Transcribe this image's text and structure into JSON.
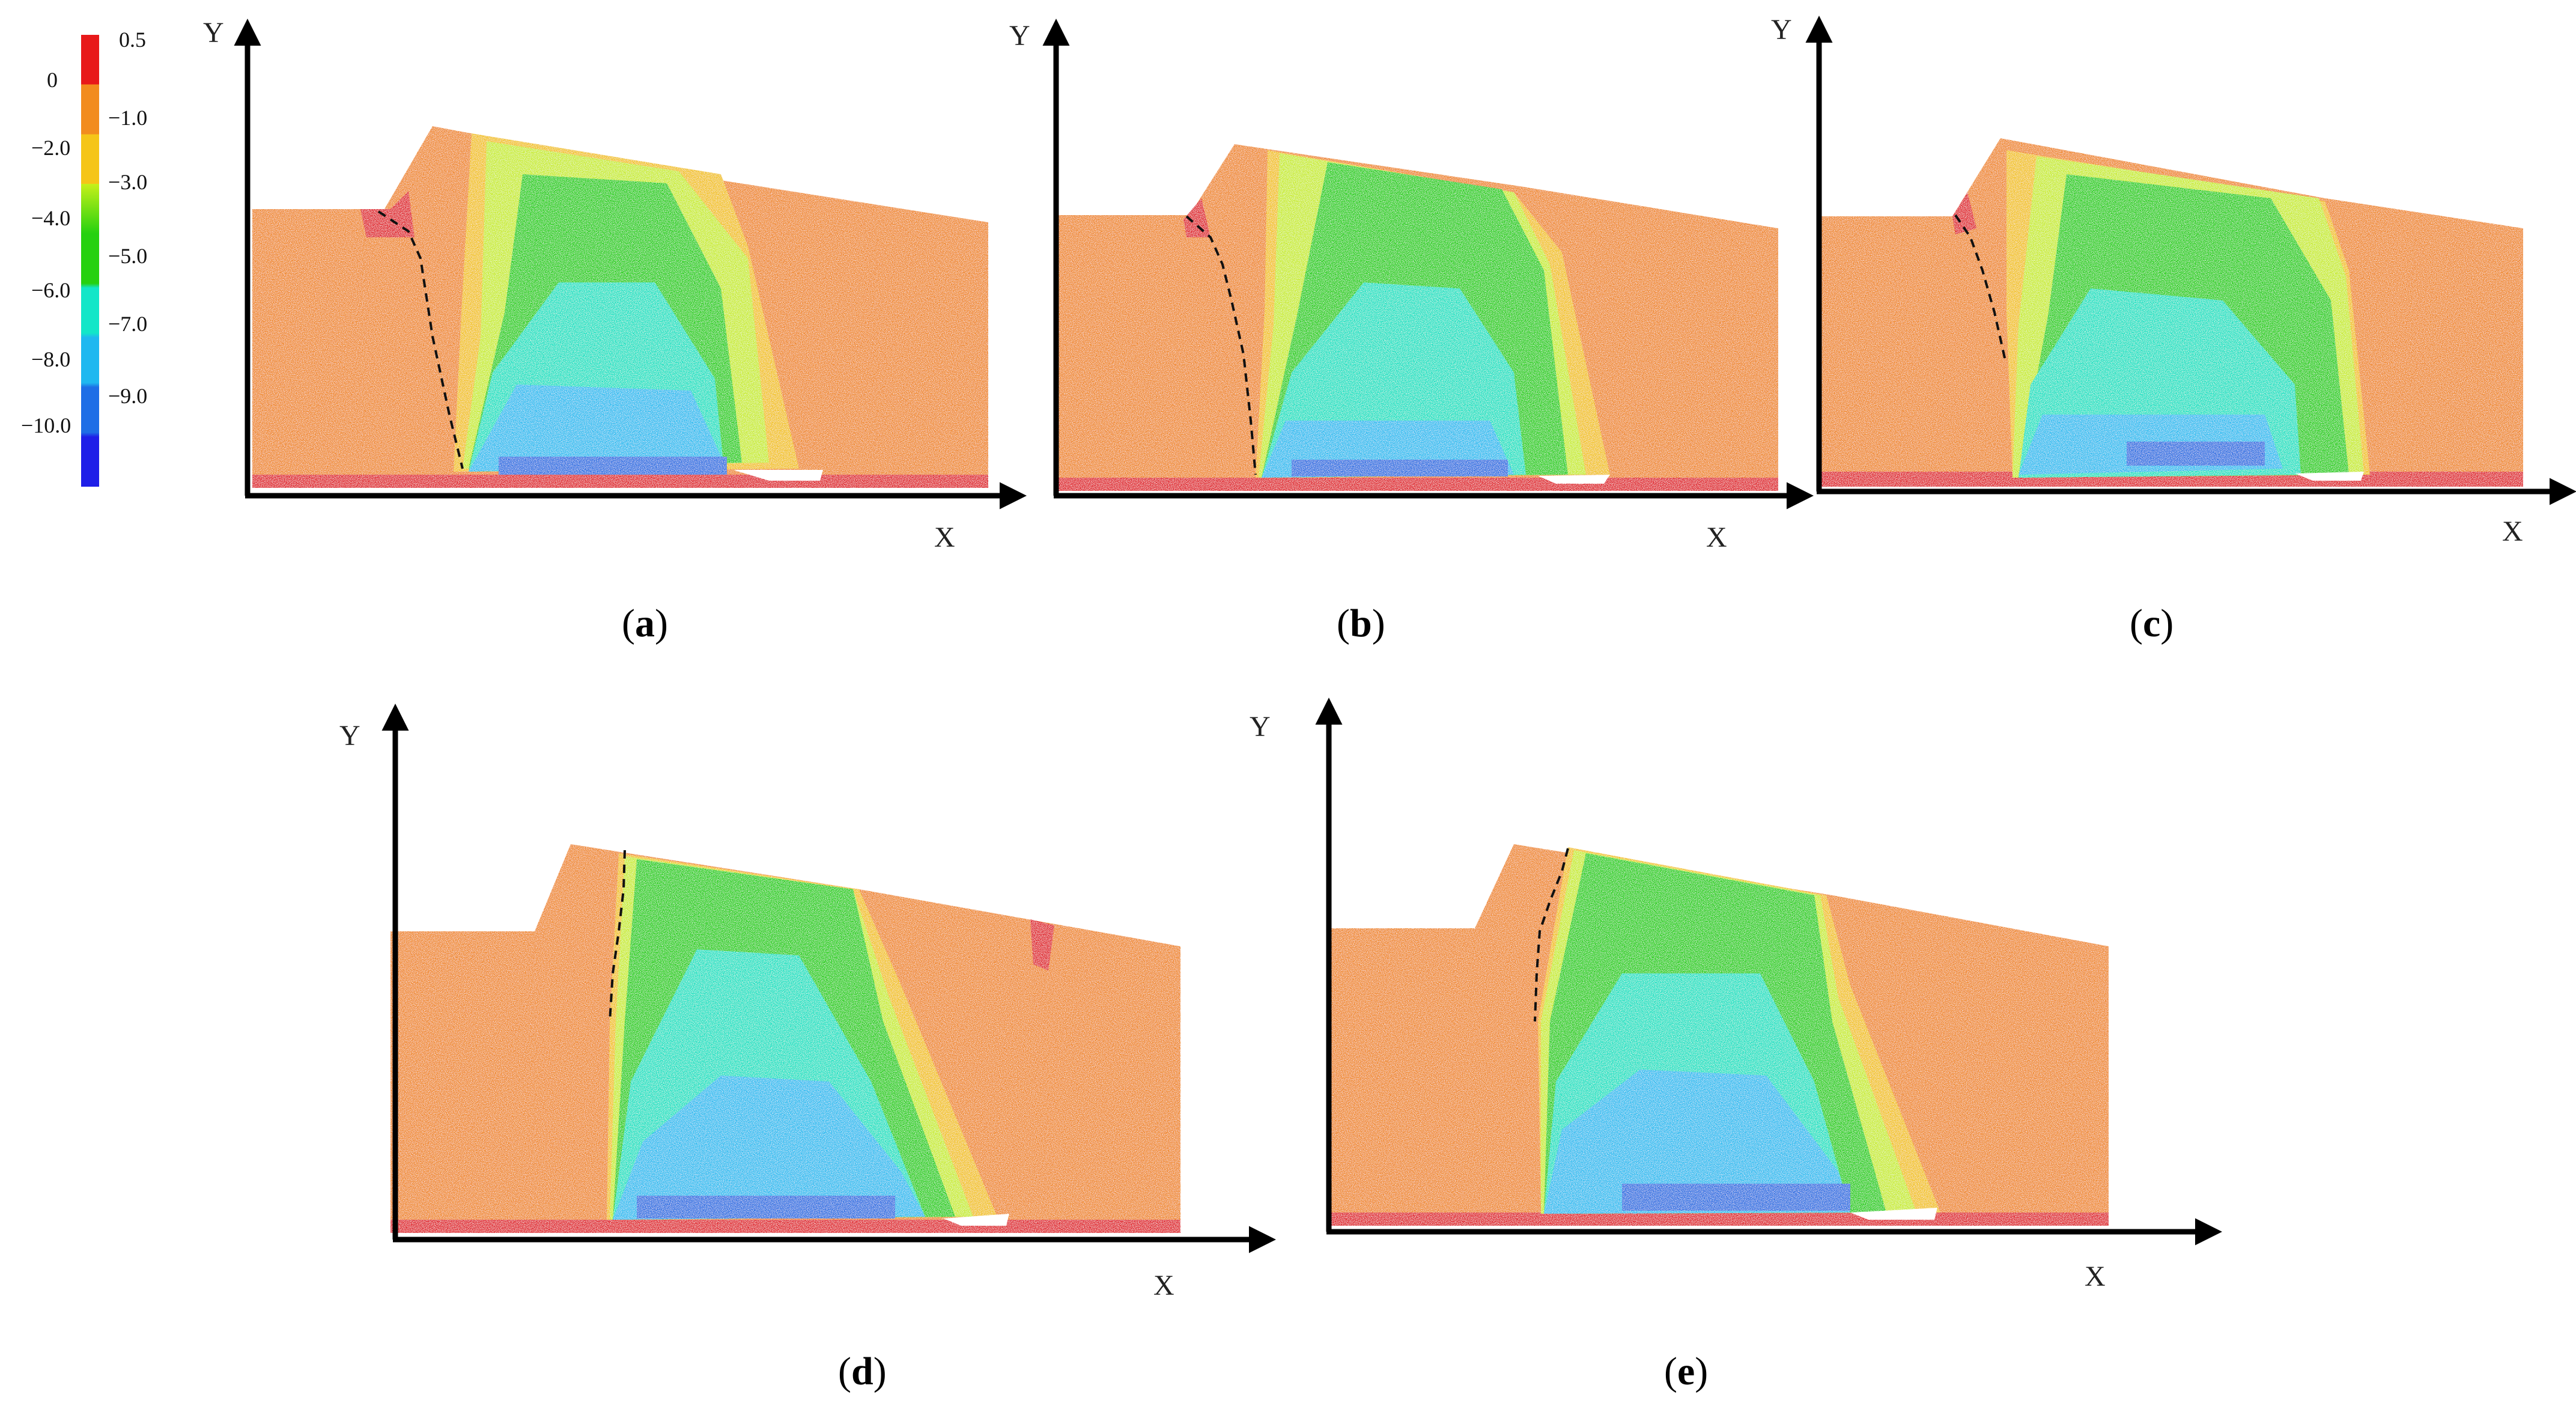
{
  "colorbar": {
    "left_labels": [
      "0",
      "−2.0",
      "−4.0",
      "−6.0",
      "−8.0",
      "−10.0"
    ],
    "right_labels": [
      "0.5",
      "−1.0",
      "−3.0",
      "−5.0",
      "−7.0",
      "−9.0"
    ],
    "colors": [
      "#e8191a",
      "#f28c1e",
      "#f5c518",
      "#c6f01a",
      "#26d10f",
      "#12e6c8",
      "#1fb8f0",
      "#1e6ee6",
      "#1f1fe8"
    ]
  },
  "panels": [
    {
      "id": "a",
      "x_label": "X",
      "y_label": "Y"
    },
    {
      "id": "b",
      "x_label": "X",
      "y_label": "Y"
    },
    {
      "id": "c",
      "x_label": "X",
      "y_label": "Y"
    },
    {
      "id": "d",
      "x_label": "X",
      "y_label": "Y"
    },
    {
      "id": "e",
      "x_label": "X",
      "y_label": "Y"
    }
  ],
  "colors": {
    "orange": "#ef8a2c",
    "red": "#e0242a",
    "yellow": "#f2c31f",
    "lime": "#c9ec2a",
    "green": "#27cf18",
    "cyan": "#17e1c3",
    "lightblue": "#2cbdf0",
    "blue": "#2a6fe2"
  }
}
